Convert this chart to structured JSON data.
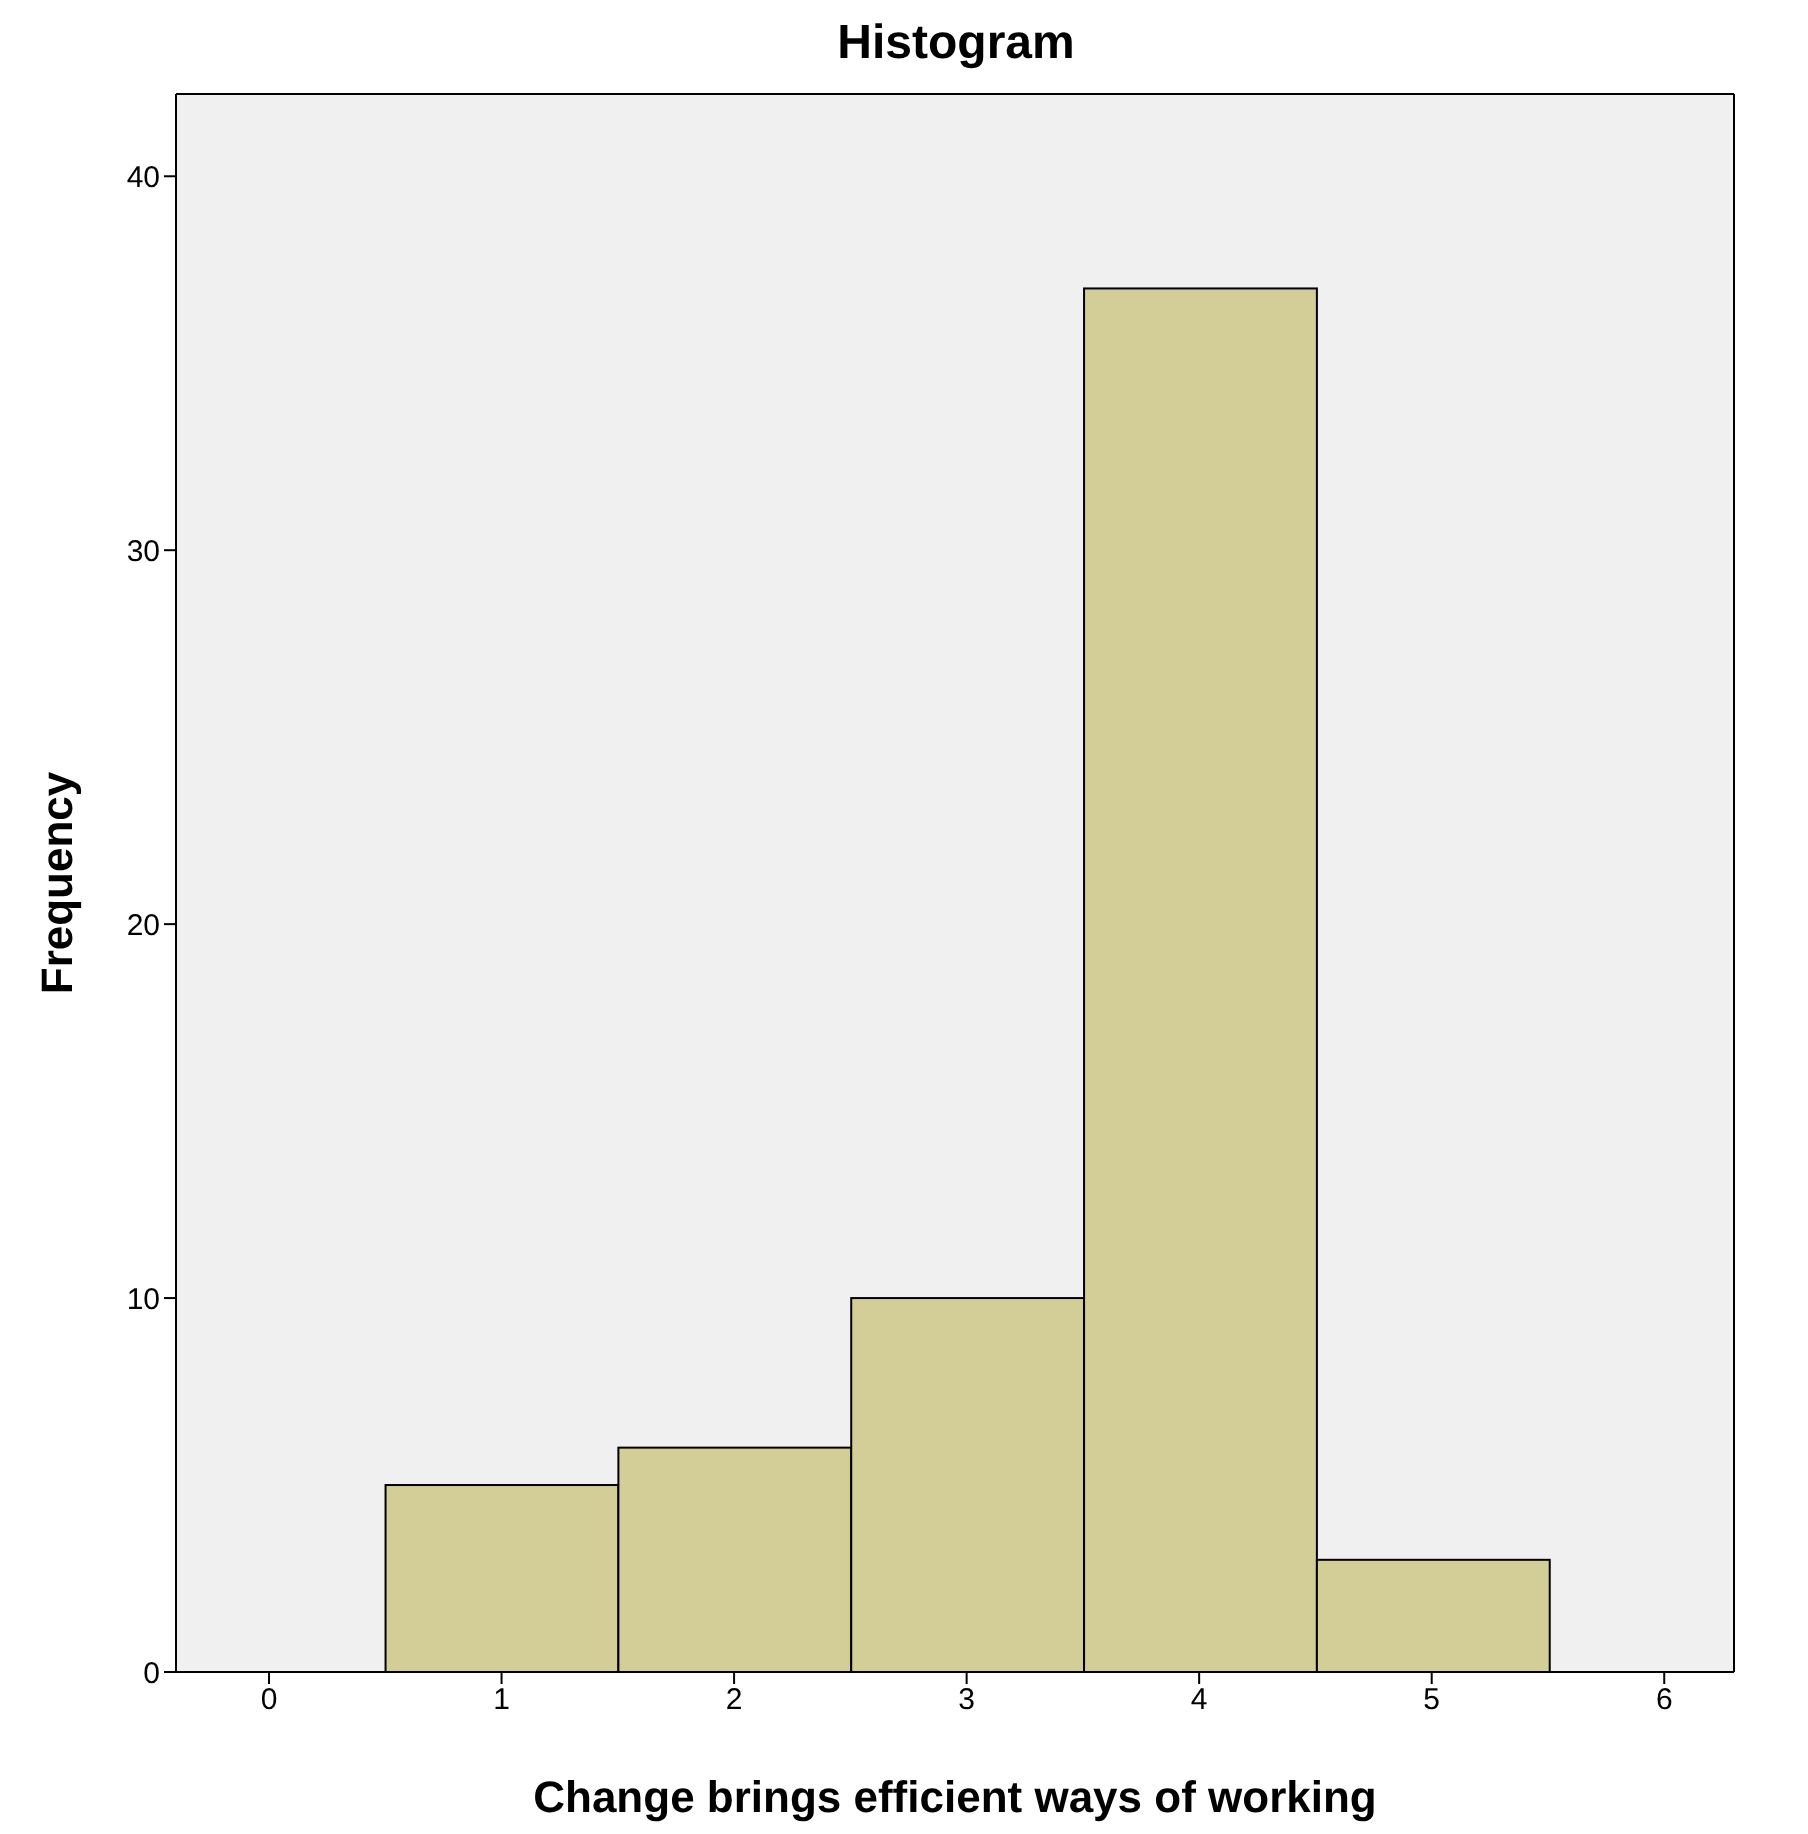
{
  "chart_data": {
    "type": "histogram",
    "title": "Histogram",
    "xlabel": "Change brings efficient ways of working",
    "ylabel": "Frequency",
    "bins": [
      0.5,
      1.5,
      2.5,
      3.5,
      4.5,
      5.5
    ],
    "values": [
      5,
      6,
      10,
      37,
      3
    ],
    "color": "#d3ce97",
    "xlim": [
      -0.4,
      6.3
    ],
    "xticks": [
      0,
      1,
      2,
      3,
      4,
      5,
      6
    ],
    "ylim": [
      0,
      42.2
    ],
    "yticks": [
      0,
      10,
      20,
      30,
      40
    ],
    "grid": false,
    "legend": false
  }
}
